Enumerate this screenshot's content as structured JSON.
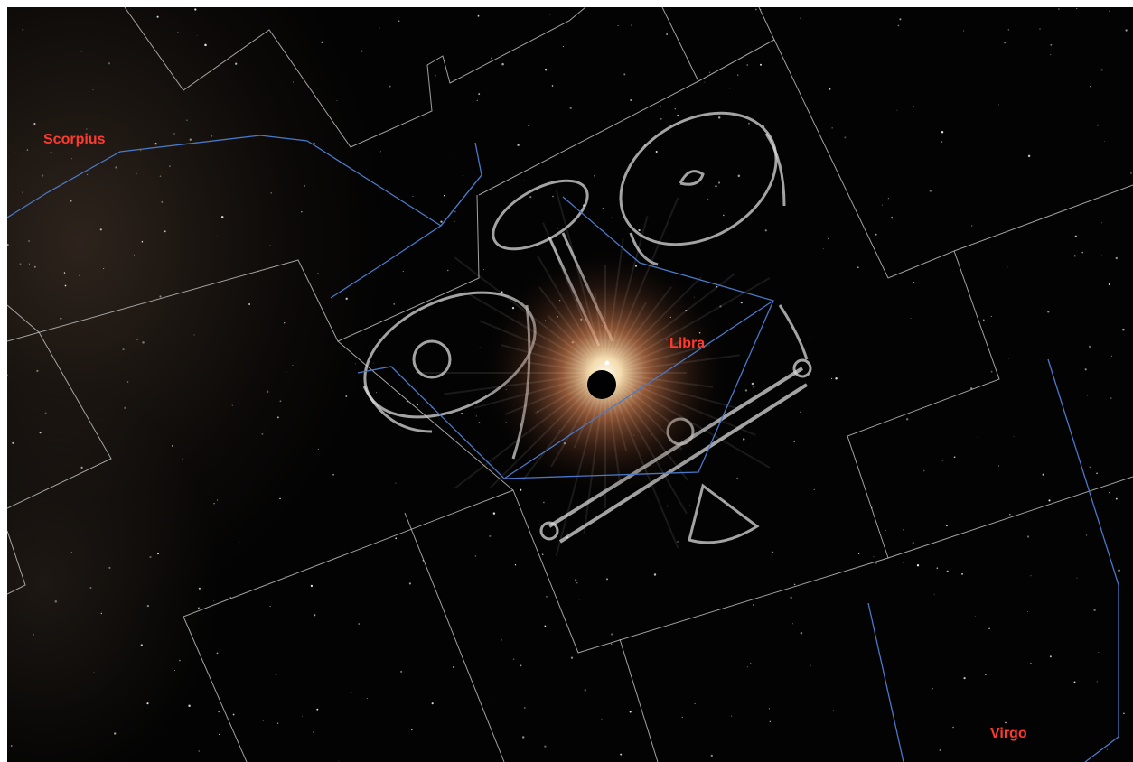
{
  "sky_map": {
    "labels": {
      "scorpius": "Scorpius",
      "libra": "Libra",
      "virgo": "Virgo"
    },
    "colors": {
      "label": "#ff3b30",
      "constellation_line": "#4a78c8",
      "boundary": "#bdbdbd",
      "background": "#030303",
      "sun_glow": "#ffd9a0"
    },
    "objects": {
      "eclipse": "sun-disk-icon"
    }
  }
}
